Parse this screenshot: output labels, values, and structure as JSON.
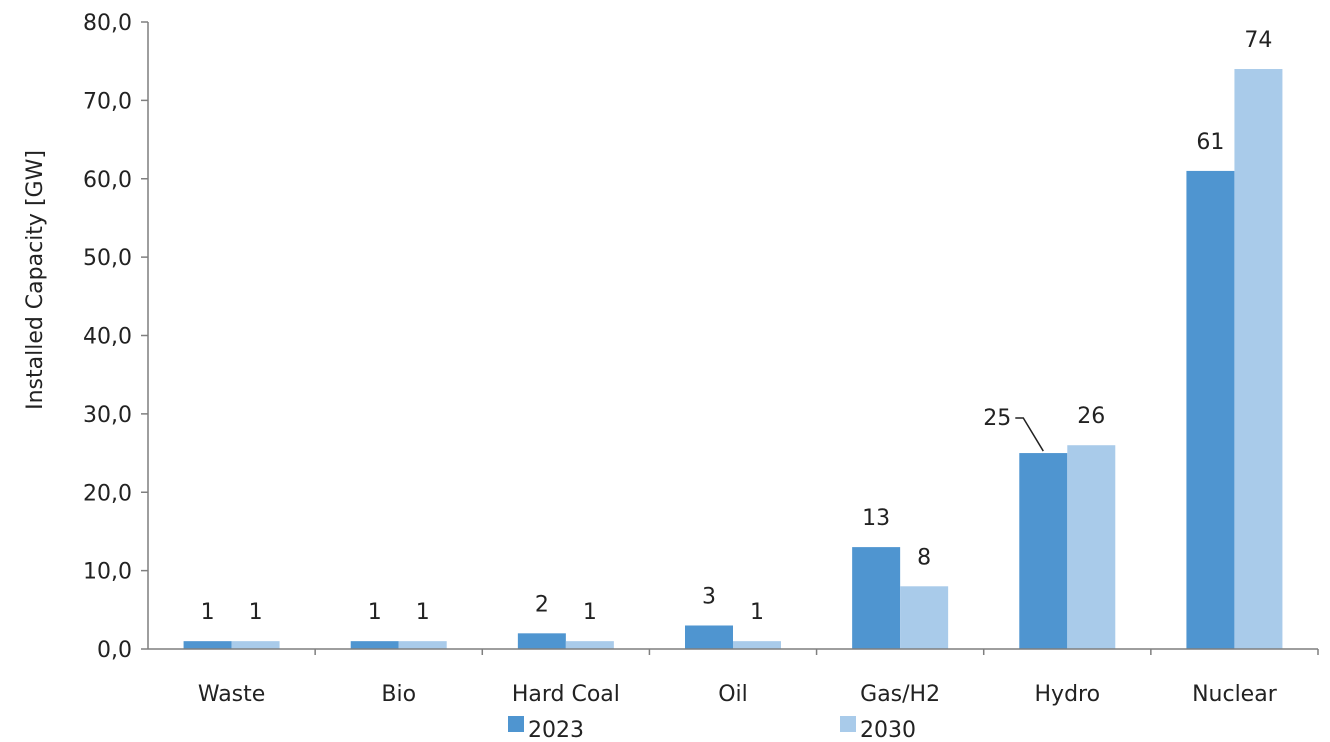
{
  "chart_data": {
    "type": "bar",
    "categories": [
      "Waste",
      "Bio",
      "Hard Coal",
      "Oil",
      "Gas/H2",
      "Hydro",
      "Nuclear"
    ],
    "series": [
      {
        "name": "2023",
        "values": [
          1,
          1,
          2,
          3,
          13,
          25,
          61
        ],
        "color": "#4f95d0"
      },
      {
        "name": "2030",
        "values": [
          1,
          1,
          1,
          1,
          8,
          26,
          74
        ],
        "color": "#a9cbea"
      }
    ],
    "data_labels": [
      [
        "1",
        "1",
        "2",
        "3",
        "13",
        "25",
        "61"
      ],
      [
        "1",
        "1",
        "1",
        "1",
        "8",
        "26",
        "74"
      ]
    ],
    "ylabel": "Installed Capacity [GW]",
    "ylim": [
      0,
      80
    ],
    "yticks": [
      "0,0",
      "10,0",
      "20,0",
      "30,0",
      "40,0",
      "50,0",
      "60,0",
      "70,0",
      "80,0"
    ],
    "grid": false,
    "legend": "bottom"
  }
}
